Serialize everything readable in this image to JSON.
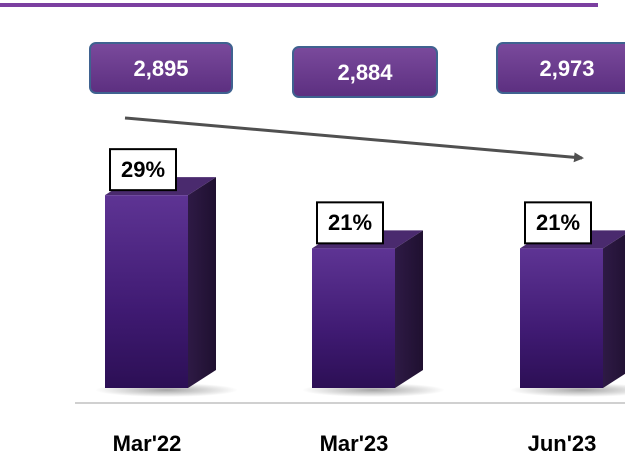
{
  "chart_data": {
    "type": "bar",
    "categories": [
      "Mar'22",
      "Mar'23",
      "Jun'23"
    ],
    "values": [
      29,
      21,
      21
    ],
    "value_labels": [
      "29%",
      "21%",
      "21%"
    ],
    "color": "#4b2380",
    "totals": [
      2895,
      2884,
      2973
    ],
    "total_labels": [
      "2,895",
      "2,884",
      "2,973"
    ]
  }
}
